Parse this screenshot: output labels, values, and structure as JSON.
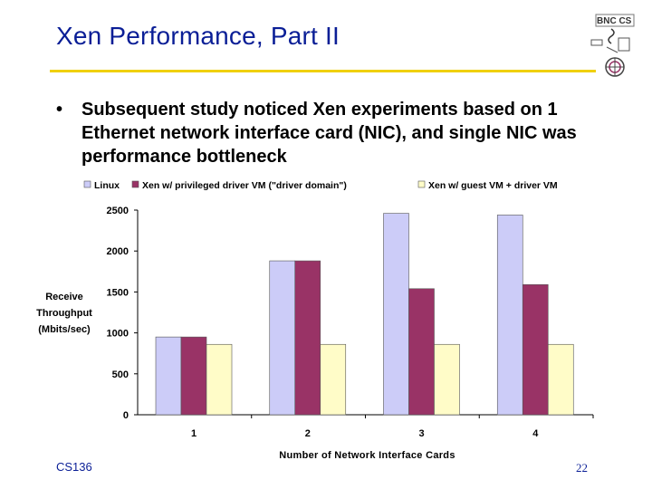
{
  "slide": {
    "title": "Xen Performance, Part II",
    "bullet_symbol": "•",
    "bullet_text": "Subsequent study noticed Xen experiments based on 1 Ethernet network interface card (NIC), and single NIC was performance bottleneck",
    "footer_left": "CS136",
    "footer_right": "22",
    "logo_text": "BNC CS",
    "colors": {
      "title": "#0a1e96",
      "rule": "#f0d010"
    }
  },
  "chart_data": {
    "type": "bar",
    "categories": [
      "1",
      "2",
      "3",
      "4"
    ],
    "series": [
      {
        "name": "Linux",
        "color": "#ccccf8",
        "values": [
          950,
          1880,
          2460,
          2440
        ]
      },
      {
        "name": "Xen w/ privileged driver VM (\"driver domain\")",
        "color": "#993366",
        "values": [
          950,
          1880,
          1540,
          1590
        ]
      },
      {
        "name": "Xen w/ guest VM + driver VM",
        "color": "#fffcc8",
        "values": [
          860,
          860,
          860,
          860
        ]
      }
    ],
    "ylabel_lines": [
      "Receive",
      "Throughput",
      "(Mbits/sec)"
    ],
    "xlabel": "Number of Network Interface Cards",
    "ylim": [
      0,
      2500
    ],
    "yticks": [
      0,
      500,
      1000,
      1500,
      2000,
      2500
    ],
    "legend_position": "top",
    "grid": false
  }
}
